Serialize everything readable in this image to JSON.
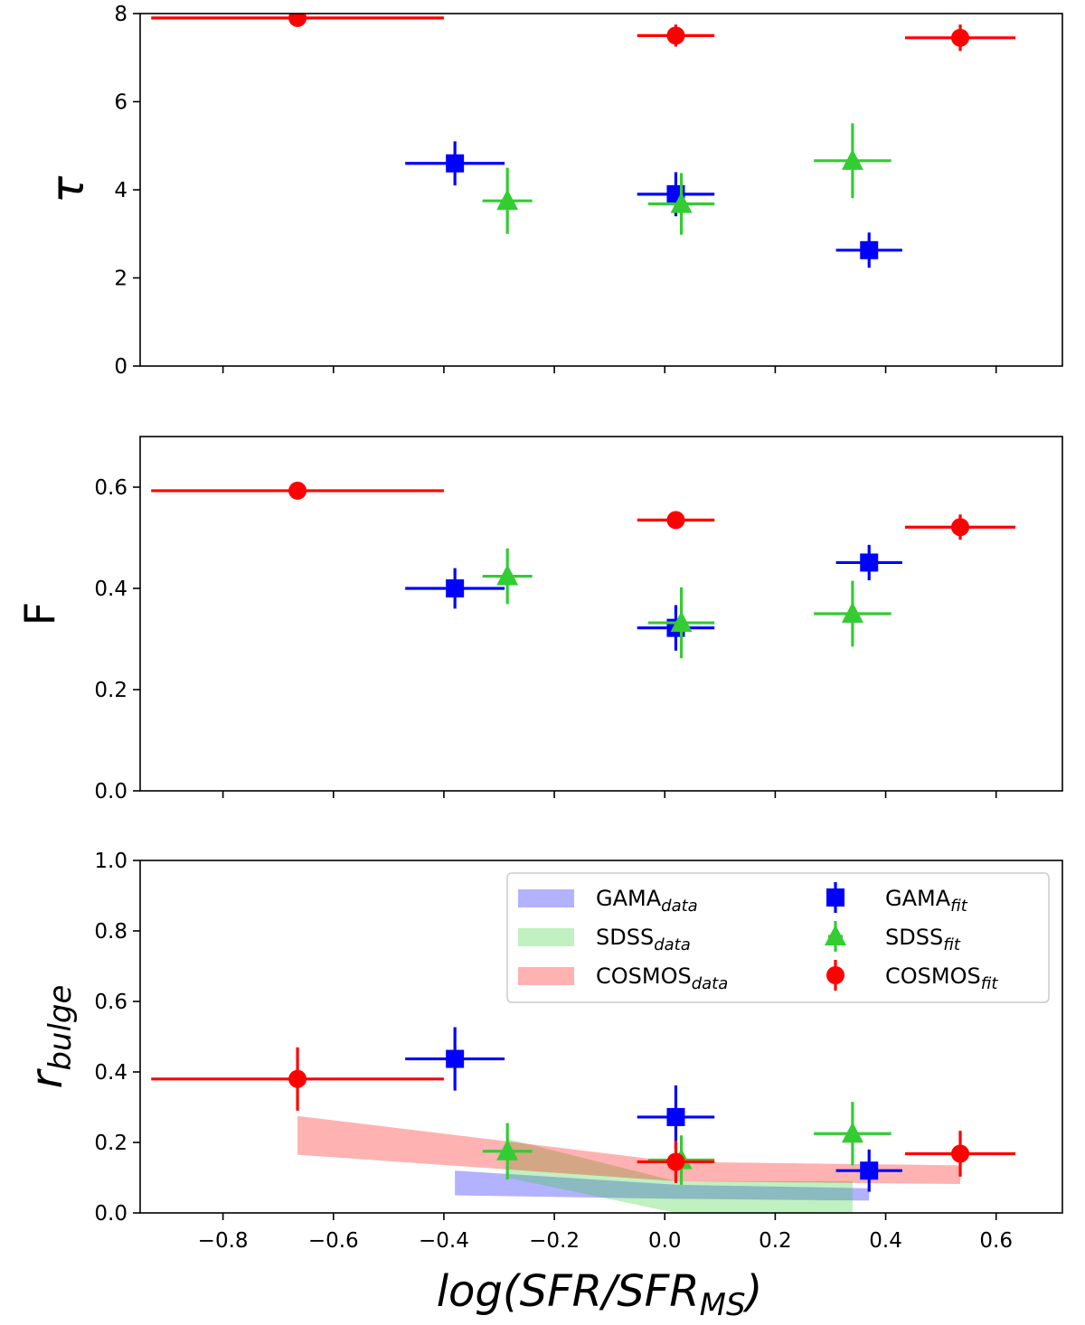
{
  "chart_data": [
    {
      "type": "scatter",
      "panel": "top",
      "ylabel": "τ",
      "xlim": [
        -0.95,
        0.72
      ],
      "ylim": [
        0,
        8
      ],
      "yticks": [
        "0",
        "2",
        "4",
        "6",
        "8"
      ],
      "xticks": [
        -0.8,
        -0.6,
        -0.4,
        -0.2,
        0.0,
        0.2,
        0.4,
        0.6
      ],
      "series": [
        {
          "name": "GAMA",
          "color": "#0000ff",
          "marker": "square",
          "points": [
            {
              "x": -0.38,
              "y": 4.6,
              "xerr": 0.09,
              "yerr": 0.5
            },
            {
              "x": 0.02,
              "y": 3.9,
              "xerr": 0.07,
              "yerr": 0.5
            },
            {
              "x": 0.37,
              "y": 2.63,
              "xerr": 0.06,
              "yerr": 0.4
            }
          ]
        },
        {
          "name": "SDSS",
          "color": "#33cc33",
          "marker": "triangle",
          "points": [
            {
              "x": -0.285,
              "y": 3.75,
              "xerr": 0.045,
              "yerr": 0.75
            },
            {
              "x": 0.03,
              "y": 3.68,
              "xerr": 0.06,
              "yerr": 0.7
            },
            {
              "x": 0.34,
              "y": 4.66,
              "xerr": 0.07,
              "yerr": 0.85
            }
          ]
        },
        {
          "name": "COSMOS",
          "color": "#ff0000",
          "marker": "circle",
          "points": [
            {
              "x": -0.665,
              "y": 7.9,
              "xerr": 0.265,
              "yerr": 0.05
            },
            {
              "x": 0.02,
              "y": 7.5,
              "xerr": 0.07,
              "yerr": 0.25
            },
            {
              "x": 0.535,
              "y": 7.45,
              "xerr": 0.1,
              "yerr": 0.3
            }
          ]
        }
      ]
    },
    {
      "type": "scatter",
      "panel": "middle",
      "ylabel": "F",
      "xlim": [
        -0.95,
        0.72
      ],
      "ylim": [
        0,
        0.7
      ],
      "yticks": [
        "0.0",
        "0.2",
        "0.4",
        "0.6"
      ],
      "xticks": [
        -0.8,
        -0.6,
        -0.4,
        -0.2,
        0.0,
        0.2,
        0.4,
        0.6
      ],
      "series": [
        {
          "name": "GAMA",
          "color": "#0000ff",
          "marker": "square",
          "points": [
            {
              "x": -0.38,
              "y": 0.4,
              "xerr": 0.09,
              "yerr": 0.04
            },
            {
              "x": 0.02,
              "y": 0.322,
              "xerr": 0.07,
              "yerr": 0.045
            },
            {
              "x": 0.37,
              "y": 0.451,
              "xerr": 0.06,
              "yerr": 0.035
            }
          ]
        },
        {
          "name": "SDSS",
          "color": "#33cc33",
          "marker": "triangle",
          "points": [
            {
              "x": -0.285,
              "y": 0.424,
              "xerr": 0.045,
              "yerr": 0.055
            },
            {
              "x": 0.03,
              "y": 0.332,
              "xerr": 0.06,
              "yerr": 0.07
            },
            {
              "x": 0.34,
              "y": 0.35,
              "xerr": 0.07,
              "yerr": 0.065
            }
          ]
        },
        {
          "name": "COSMOS",
          "color": "#ff0000",
          "marker": "circle",
          "points": [
            {
              "x": -0.665,
              "y": 0.593,
              "xerr": 0.265,
              "yerr": 0.005
            },
            {
              "x": 0.02,
              "y": 0.535,
              "xerr": 0.07,
              "yerr": 0.016
            },
            {
              "x": 0.535,
              "y": 0.521,
              "xerr": 0.1,
              "yerr": 0.025
            }
          ]
        }
      ]
    },
    {
      "type": "scatter",
      "panel": "bottom",
      "ylabel": "r_bulge",
      "ylabel_base": "r",
      "ylabel_sub": "bulge",
      "xlabel": "log(SFR/SFR_MS)",
      "xlabel_main": "log(SFR/SFR",
      "xlabel_sub": "MS",
      "xlabel_end": ")",
      "xlim": [
        -0.95,
        0.72
      ],
      "ylim": [
        0,
        1.0
      ],
      "yticks": [
        "0.0",
        "0.2",
        "0.4",
        "0.6",
        "0.8",
        "1.0"
      ],
      "xticks": [
        -0.8,
        -0.6,
        -0.4,
        -0.2,
        0.0,
        0.2,
        0.4,
        0.6
      ],
      "xtick_labels": [
        "−0.8",
        "−0.6",
        "−0.4",
        "−0.2",
        "0.0",
        "0.2",
        "0.4",
        "0.6"
      ],
      "bands": [
        {
          "name": "GAMA",
          "color": "#0000ff",
          "opacity": 0.3,
          "x": [
            -0.38,
            0.02,
            0.37
          ],
          "lower": [
            0.05,
            0.04,
            0.035
          ],
          "upper": [
            0.12,
            0.08,
            0.07
          ]
        },
        {
          "name": "SDSS",
          "color": "#33cc33",
          "opacity": 0.3,
          "x": [
            -0.285,
            0.02,
            0.34
          ],
          "lower": [
            0.1,
            0.0,
            0.0
          ],
          "upper": [
            0.21,
            0.09,
            0.09
          ]
        },
        {
          "name": "COSMOS",
          "color": "#ff0000",
          "opacity": 0.3,
          "x": [
            -0.665,
            0.02,
            0.535
          ],
          "lower": [
            0.165,
            0.09,
            0.082
          ],
          "upper": [
            0.275,
            0.145,
            0.135
          ]
        }
      ],
      "series": [
        {
          "name": "GAMA",
          "color": "#0000ff",
          "marker": "square",
          "points": [
            {
              "x": -0.38,
              "y": 0.437,
              "xerr": 0.09,
              "yerr": 0.09
            },
            {
              "x": 0.02,
              "y": 0.272,
              "xerr": 0.07,
              "yerr": 0.09
            },
            {
              "x": 0.37,
              "y": 0.12,
              "xerr": 0.06,
              "yerr": 0.06
            }
          ]
        },
        {
          "name": "SDSS",
          "color": "#33cc33",
          "marker": "triangle",
          "points": [
            {
              "x": -0.285,
              "y": 0.175,
              "xerr": 0.045,
              "yerr": 0.08
            },
            {
              "x": 0.03,
              "y": 0.15,
              "xerr": 0.06,
              "yerr": 0.07
            },
            {
              "x": 0.34,
              "y": 0.225,
              "xerr": 0.07,
              "yerr": 0.09
            }
          ]
        },
        {
          "name": "COSMOS",
          "color": "#ff0000",
          "marker": "circle",
          "points": [
            {
              "x": -0.665,
              "y": 0.38,
              "xerr": 0.265,
              "yerr": 0.09
            },
            {
              "x": 0.02,
              "y": 0.145,
              "xerr": 0.07,
              "yerr": 0.06
            },
            {
              "x": 0.535,
              "y": 0.168,
              "xerr": 0.1,
              "yerr": 0.065
            }
          ]
        }
      ],
      "legend": {
        "location": "upper right",
        "entries": [
          {
            "base": "GAMA",
            "sub": "data",
            "kind": "band",
            "color": "#0000ff"
          },
          {
            "base": "SDSS",
            "sub": "data",
            "kind": "band",
            "color": "#33cc33"
          },
          {
            "base": "COSMOS",
            "sub": "data",
            "kind": "band",
            "color": "#ff0000"
          },
          {
            "base": "GAMA",
            "sub": "fit",
            "kind": "square",
            "color": "#0000ff"
          },
          {
            "base": "SDSS",
            "sub": "fit",
            "kind": "triangle",
            "color": "#33cc33"
          },
          {
            "base": "COSMOS",
            "sub": "fit",
            "kind": "circle",
            "color": "#ff0000"
          }
        ]
      }
    }
  ]
}
